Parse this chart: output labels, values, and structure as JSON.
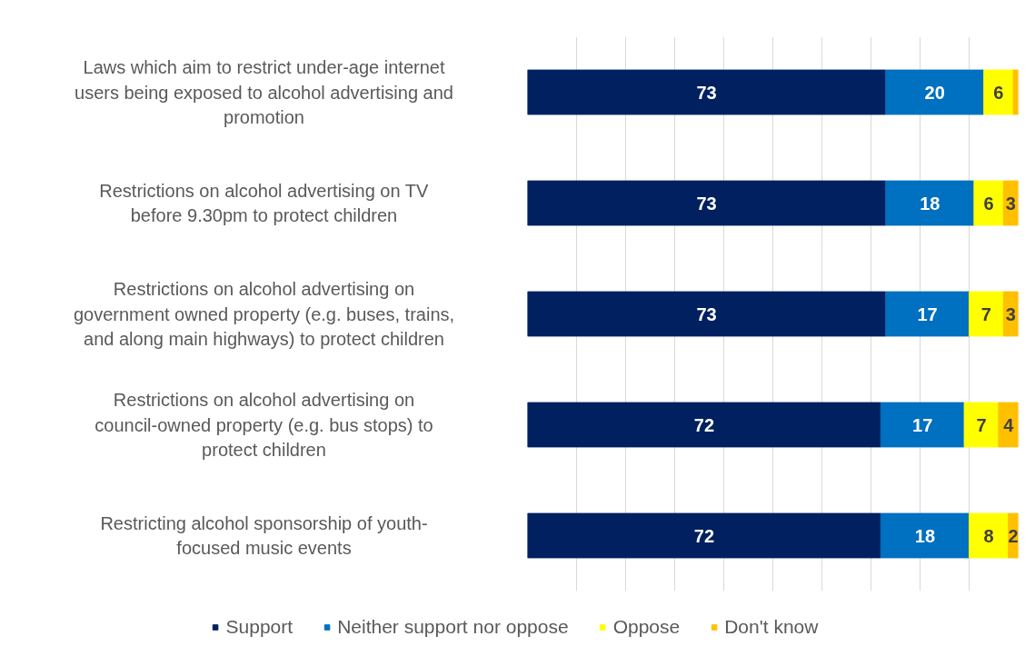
{
  "chart_data": {
    "type": "bar",
    "orientation": "horizontal",
    "stacked": true,
    "categories": [
      "Laws which aim to restrict under-age internet users being exposed to alcohol advertising and promotion",
      "Restrictions on alcohol advertising on TV before 9.30pm to protect children",
      "Restrictions on alcohol advertising on government owned property (e.g. buses, trains, and along main highways) to protect children",
      "Restrictions on alcohol advertising on council-owned property (e.g. bus stops) to protect children",
      "Restricting alcohol sponsorship of youth-focused music events"
    ],
    "series": [
      {
        "name": "Support",
        "color": "#002060",
        "values": [
          73,
          73,
          73,
          72,
          72
        ]
      },
      {
        "name": "Neither support nor oppose",
        "color": "#0070c0",
        "values": [
          20,
          18,
          17,
          17,
          18
        ]
      },
      {
        "name": "Oppose",
        "color": "#ffff00",
        "values": [
          6,
          6,
          7,
          7,
          8
        ]
      },
      {
        "name": "Don't know",
        "color": "#ffc000",
        "values": [
          1,
          3,
          3,
          4,
          2
        ],
        "value_labels": [
          null,
          "3",
          "3",
          "4",
          "2"
        ]
      }
    ],
    "xlim": [
      0,
      100
    ],
    "grid": "x",
    "legend": "bottom",
    "data_labels": true
  }
}
